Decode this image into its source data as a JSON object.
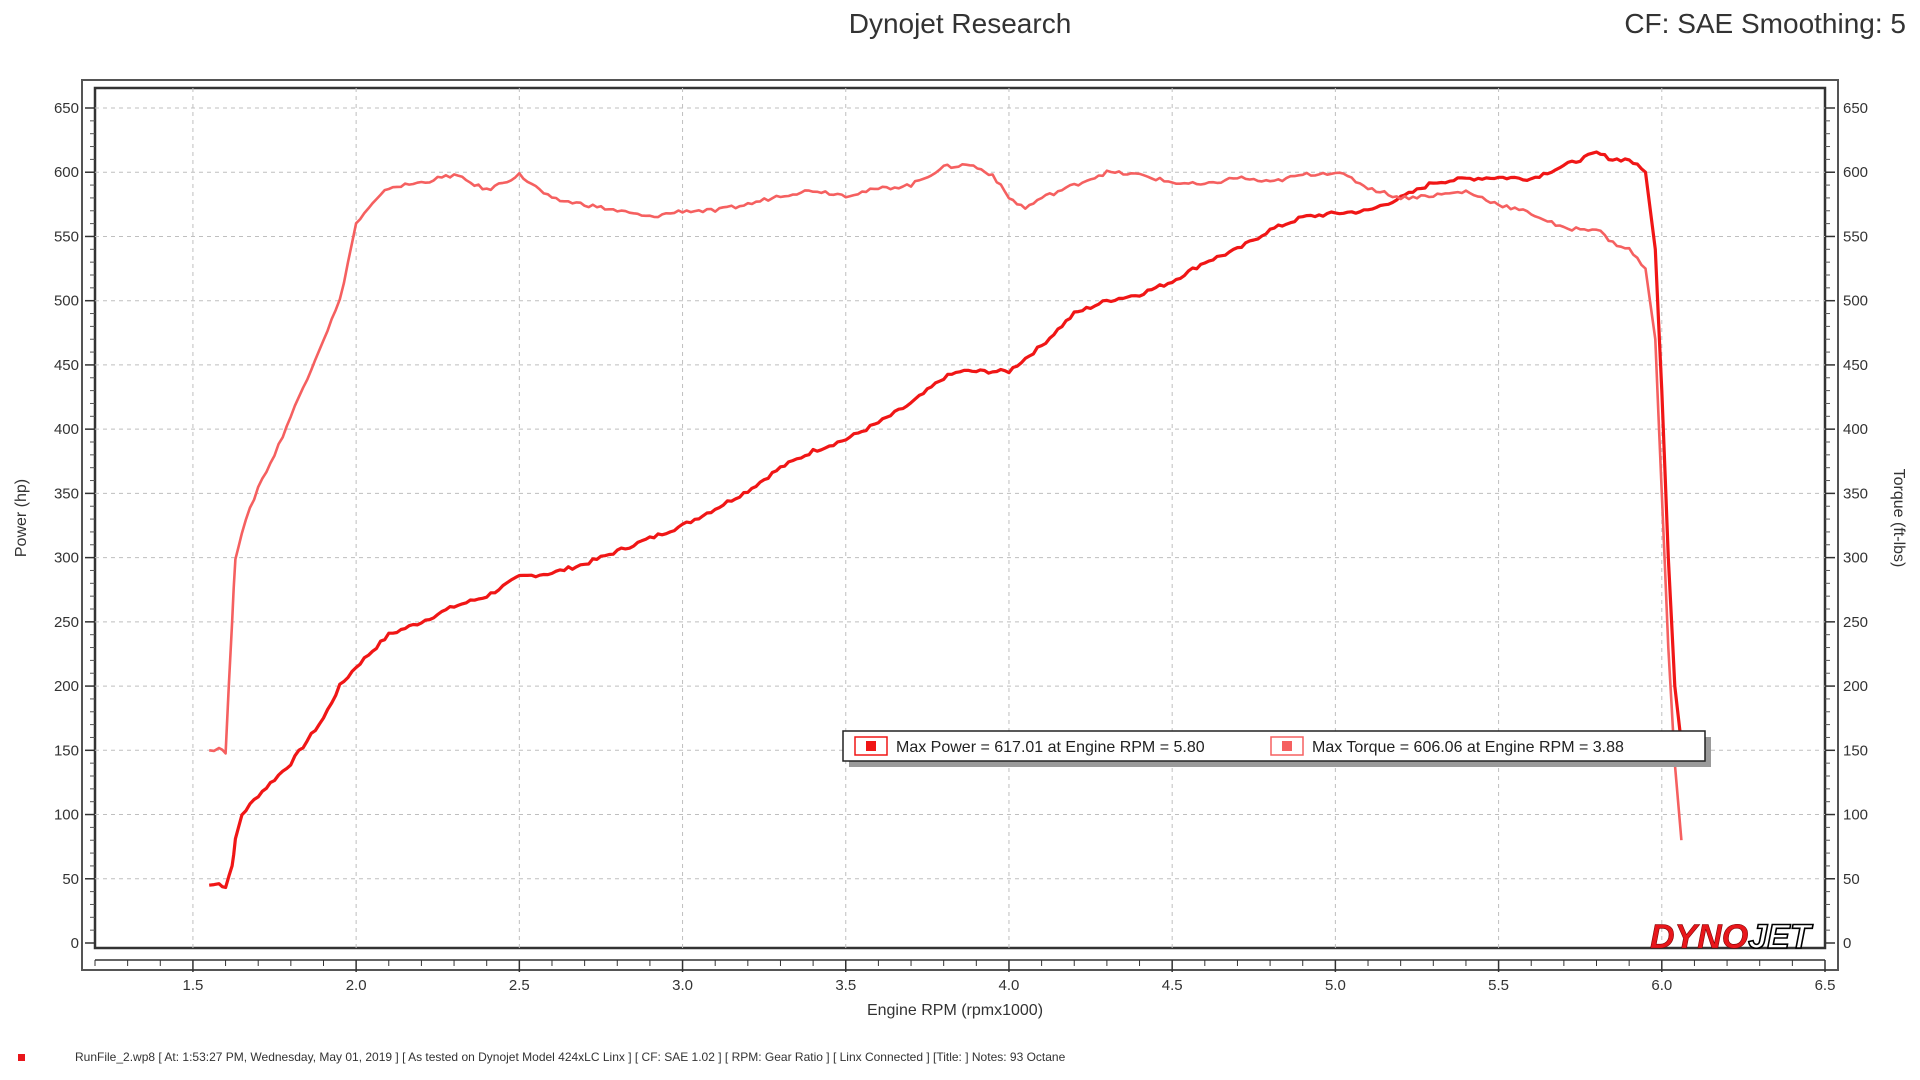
{
  "header": {
    "title": "Dynojet Research",
    "cf_label": "CF: SAE Smoothing: 5"
  },
  "footer": {
    "text": "RunFile_2.wp8 [ At: 1:53:27 PM, Wednesday, May 01, 2019 ] [ As tested on Dynojet Model 424xLC Linx ] [ CF: SAE 1.02 ] [ RPM: Gear Ratio ] [ Linx Connected ] [Title: ] Notes: 93 Octane"
  },
  "logo": {
    "part1": "DYNO",
    "part2": "JET"
  },
  "colors": {
    "power": "#f01616",
    "torque": "#f56060",
    "grid": "#bfbfbf"
  },
  "chart_data": {
    "type": "line",
    "xlabel": "Engine RPM (rpmx1000)",
    "ylabel": "Power (hp)",
    "y2label": "Torque (ft-lbs)",
    "xlim": [
      1.2,
      6.5
    ],
    "ylim": [
      0,
      650
    ],
    "xticks": [
      1.5,
      2.0,
      2.5,
      3.0,
      3.5,
      4.0,
      4.5,
      5.0,
      5.5,
      6.0,
      6.5
    ],
    "yticks": [
      0,
      50,
      100,
      150,
      200,
      250,
      300,
      350,
      400,
      450,
      500,
      550,
      600,
      650
    ],
    "grid": true,
    "legend": {
      "placement": "bottom-right",
      "entries": [
        "Max Power = 617.01 at Engine RPM = 5.80",
        "Max Torque = 606.06 at Engine RPM = 3.88"
      ]
    },
    "series": [
      {
        "name": "Power",
        "x": [
          1.55,
          1.58,
          1.6,
          1.62,
          1.63,
          1.65,
          1.7,
          1.8,
          1.9,
          1.95,
          2.0,
          2.1,
          2.2,
          2.3,
          2.4,
          2.5,
          2.6,
          2.7,
          2.8,
          2.9,
          3.0,
          3.1,
          3.2,
          3.3,
          3.4,
          3.5,
          3.6,
          3.7,
          3.8,
          3.85,
          3.9,
          4.0,
          4.1,
          4.2,
          4.3,
          4.4,
          4.5,
          4.6,
          4.7,
          4.8,
          4.9,
          5.0,
          5.1,
          5.2,
          5.3,
          5.4,
          5.5,
          5.6,
          5.7,
          5.75,
          5.8,
          5.85,
          5.9,
          5.95,
          5.98,
          6.0,
          6.02,
          6.04,
          6.06
        ],
        "values": [
          45,
          46,
          44,
          60,
          80,
          100,
          115,
          140,
          175,
          200,
          215,
          240,
          250,
          262,
          270,
          285,
          288,
          295,
          305,
          315,
          325,
          338,
          352,
          370,
          383,
          392,
          405,
          420,
          440,
          445,
          445,
          445,
          465,
          490,
          500,
          505,
          515,
          530,
          540,
          555,
          565,
          568,
          570,
          580,
          592,
          595,
          596,
          595,
          605,
          610,
          615,
          610,
          610,
          600,
          540,
          430,
          300,
          200,
          155
        ]
      },
      {
        "name": "Torque",
        "x": [
          1.55,
          1.58,
          1.6,
          1.62,
          1.63,
          1.65,
          1.7,
          1.75,
          1.8,
          1.9,
          1.95,
          2.0,
          2.05,
          2.1,
          2.2,
          2.3,
          2.4,
          2.5,
          2.6,
          2.7,
          2.8,
          2.9,
          3.0,
          3.1,
          3.2,
          3.3,
          3.4,
          3.5,
          3.6,
          3.7,
          3.8,
          3.88,
          3.95,
          4.0,
          4.05,
          4.1,
          4.2,
          4.3,
          4.4,
          4.5,
          4.6,
          4.7,
          4.8,
          4.9,
          5.0,
          5.05,
          5.1,
          5.2,
          5.3,
          5.4,
          5.5,
          5.6,
          5.7,
          5.8,
          5.85,
          5.9,
          5.95,
          5.98,
          6.0,
          6.02,
          6.04,
          6.06
        ],
        "values": [
          150,
          152,
          149,
          250,
          300,
          320,
          355,
          380,
          410,
          470,
          500,
          560,
          575,
          588,
          592,
          598,
          586,
          598,
          579,
          575,
          570,
          565,
          570,
          570,
          575,
          582,
          586,
          582,
          587,
          590,
          604,
          606,
          598,
          580,
          572,
          580,
          590,
          600,
          598,
          592,
          590,
          596,
          592,
          598,
          600,
          595,
          588,
          580,
          582,
          585,
          575,
          568,
          556,
          556,
          545,
          540,
          525,
          470,
          350,
          230,
          140,
          80
        ]
      }
    ]
  }
}
